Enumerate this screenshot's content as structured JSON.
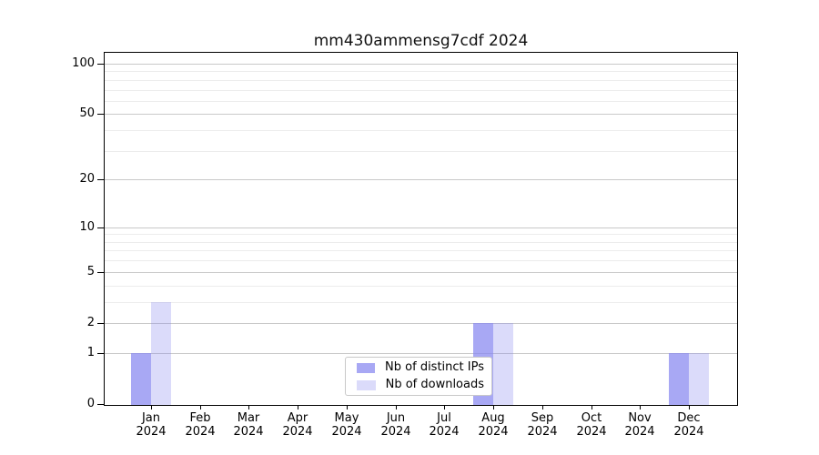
{
  "chart_data": {
    "type": "bar",
    "title": "mm430ammensg7cdf 2024",
    "year_label": "2024",
    "categories": [
      "Jan",
      "Feb",
      "Mar",
      "Apr",
      "May",
      "Jun",
      "Jul",
      "Aug",
      "Sep",
      "Oct",
      "Nov",
      "Dec"
    ],
    "series": [
      {
        "name": "Nb of distinct IPs",
        "values": [
          1,
          0,
          0,
          0,
          0,
          0,
          0,
          2,
          0,
          0,
          0,
          1
        ],
        "color": "rgba(135,135,240,0.72)"
      },
      {
        "name": "Nb of downloads",
        "values": [
          3,
          0,
          0,
          0,
          0,
          0,
          0,
          2,
          0,
          0,
          0,
          1
        ],
        "color": "rgba(135,135,240,0.30)"
      }
    ],
    "xlabel": "",
    "ylabel": "",
    "yscale": "log1p",
    "ylim": [
      0,
      118
    ],
    "y_major_ticks": [
      0,
      1,
      2,
      5,
      10,
      20,
      50,
      100
    ],
    "y_minor_gridlines": [
      3,
      4,
      6,
      7,
      8,
      9,
      30,
      40,
      60,
      70,
      80,
      90
    ],
    "grid": "horizontal",
    "legend_position": "lower-center-inside",
    "colors": {
      "major_grid": "#c9c9c9",
      "minor_grid": "#ececec",
      "spine": "#000000",
      "background": "#ffffff"
    }
  }
}
